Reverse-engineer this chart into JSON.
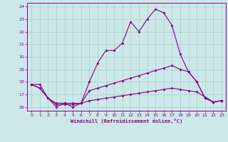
{
  "xlabel": "Windchill (Refroidissement éolien,°C)",
  "x_values": [
    0,
    1,
    2,
    3,
    4,
    5,
    6,
    7,
    8,
    9,
    10,
    11,
    12,
    13,
    14,
    15,
    16,
    17,
    18,
    19,
    20,
    21,
    22,
    23
  ],
  "line1": [
    17.8,
    17.8,
    16.7,
    16.0,
    16.3,
    16.0,
    16.3,
    18.0,
    19.5,
    20.5,
    20.5,
    21.1,
    22.8,
    22.0,
    23.0,
    23.8,
    23.5,
    22.5,
    20.2,
    18.8,
    18.0,
    16.7,
    16.4,
    16.5
  ],
  "line2": [
    17.8,
    17.5,
    16.7,
    16.2,
    16.2,
    16.2,
    16.3,
    17.3,
    17.5,
    17.7,
    17.9,
    18.1,
    18.3,
    18.5,
    18.7,
    18.9,
    19.1,
    19.3,
    19.0,
    18.8,
    18.0,
    16.7,
    16.4,
    16.5
  ],
  "line3": [
    17.8,
    17.5,
    16.7,
    16.3,
    16.3,
    16.3,
    16.3,
    16.5,
    16.6,
    16.7,
    16.8,
    16.9,
    17.0,
    17.1,
    17.2,
    17.3,
    17.4,
    17.5,
    17.4,
    17.3,
    17.2,
    16.8,
    16.4,
    16.5
  ],
  "line_color": "#880088",
  "bg_color": "#cce8e8",
  "grid_color": "#aacccc",
  "ylim": [
    15.7,
    24.3
  ],
  "xlim": [
    -0.5,
    23.5
  ],
  "yticks": [
    16,
    17,
    18,
    19,
    20,
    21,
    22,
    23,
    24
  ]
}
